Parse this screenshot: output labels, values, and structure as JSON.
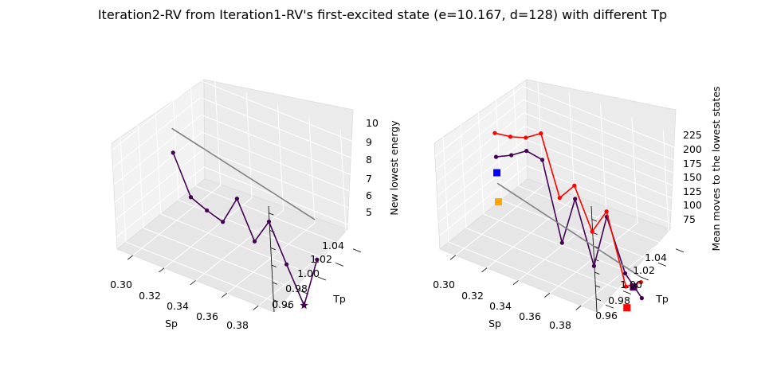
{
  "figure": {
    "title": "Iteration2-RV from Iteration1-RV's first-excited state (e=10.167, d=128)  with different Tp"
  },
  "chart_data": [
    {
      "type": "line3d",
      "xlabel": "Sp",
      "ylabel": "Tp",
      "zlabel": "New lowest energy",
      "x_ticks": [
        "0.30",
        "0.32",
        "0.34",
        "0.36",
        "0.38"
      ],
      "y_ticks": [
        "0.96",
        "0.98",
        "1.00",
        "1.02",
        "1.04"
      ],
      "z_ticks": [
        "5",
        "6",
        "7",
        "8",
        "9",
        "10"
      ],
      "xlim": [
        0.29,
        0.39
      ],
      "ylim": [
        0.95,
        1.05
      ],
      "zlim": [
        4.3,
        10.4
      ],
      "grid": true,
      "series": [
        {
          "color": "#440154",
          "marker": "circle",
          "x": [
            0.3,
            0.31,
            0.32,
            0.33,
            0.34,
            0.35,
            0.36,
            0.37,
            0.38,
            0.39
          ],
          "y": [
            1.0,
            1.0,
            1.0,
            1.0,
            1.0,
            1.0,
            1.0,
            1.0,
            1.0,
            1.0
          ],
          "z": [
            8.2,
            6.0,
            5.6,
            5.3,
            7.0,
            4.9,
            6.4,
            4.3,
            2.3,
            5.3
          ]
        },
        {
          "color": "#808080",
          "marker": "none",
          "x": [
            0.3,
            0.39
          ],
          "y": [
            1.0,
            1.0
          ],
          "z": [
            9.6,
            7.6
          ]
        }
      ],
      "highlight": {
        "marker": "star",
        "color": "#440154",
        "x": 0.38,
        "y": 1.0,
        "z": 2.3
      }
    },
    {
      "type": "line3d",
      "xlabel": "Sp",
      "ylabel": "Tp",
      "zlabel": "Mean moves to the lowest states",
      "x_ticks": [
        "0.30",
        "0.32",
        "0.34",
        "0.36",
        "0.38"
      ],
      "y_ticks": [
        "0.96",
        "0.98",
        "1.00",
        "1.02",
        "1.04"
      ],
      "z_ticks": [
        "75",
        "100",
        "125",
        "150",
        "175",
        "200",
        "225"
      ],
      "xlim": [
        0.29,
        0.39
      ],
      "ylim": [
        0.95,
        1.05
      ],
      "zlim": [
        50,
        250
      ],
      "grid": true,
      "series": [
        {
          "color": "#440154",
          "marker": "circle",
          "x": [
            0.3,
            0.31,
            0.32,
            0.33,
            0.34,
            0.35,
            0.36,
            0.37,
            0.38,
            0.39
          ],
          "y": [
            1.0,
            1.0,
            1.0,
            1.0,
            1.0,
            1.0,
            1.0,
            1.0,
            1.0,
            1.0
          ],
          "z": [
            170,
            185,
            205,
            200,
            55,
            150,
            35,
            140,
            45,
            10
          ]
        },
        {
          "color": "#ff0000",
          "marker": "circle",
          "x": [
            0.3,
            0.31,
            0.32,
            0.33,
            0.34,
            0.35,
            0.36,
            0.37,
            0.38,
            0.39
          ],
          "y": [
            1.0,
            1.0,
            1.0,
            1.0,
            1.0,
            1.0,
            1.0,
            1.0,
            1.0,
            1.0
          ],
          "z": [
            215,
            220,
            230,
            250,
            140,
            175,
            100,
            150,
            20,
            40
          ]
        },
        {
          "color": "#808080",
          "marker": "none",
          "x": [
            0.3,
            0.39
          ],
          "y": [
            1.0,
            1.0
          ],
          "z": [
            120,
            50
          ]
        }
      ],
      "squares": [
        {
          "color": "#0000ff",
          "x": 0.3,
          "y": 1.0,
          "z": 140
        },
        {
          "color": "#ffa500",
          "x": 0.3,
          "y": 1.0,
          "z": 85
        },
        {
          "color": "#440154",
          "x": 0.385,
          "y": 1.0,
          "z": 25
        },
        {
          "color": "#ff0000",
          "x": 0.38,
          "y": 1.0,
          "z": -20
        }
      ]
    }
  ]
}
